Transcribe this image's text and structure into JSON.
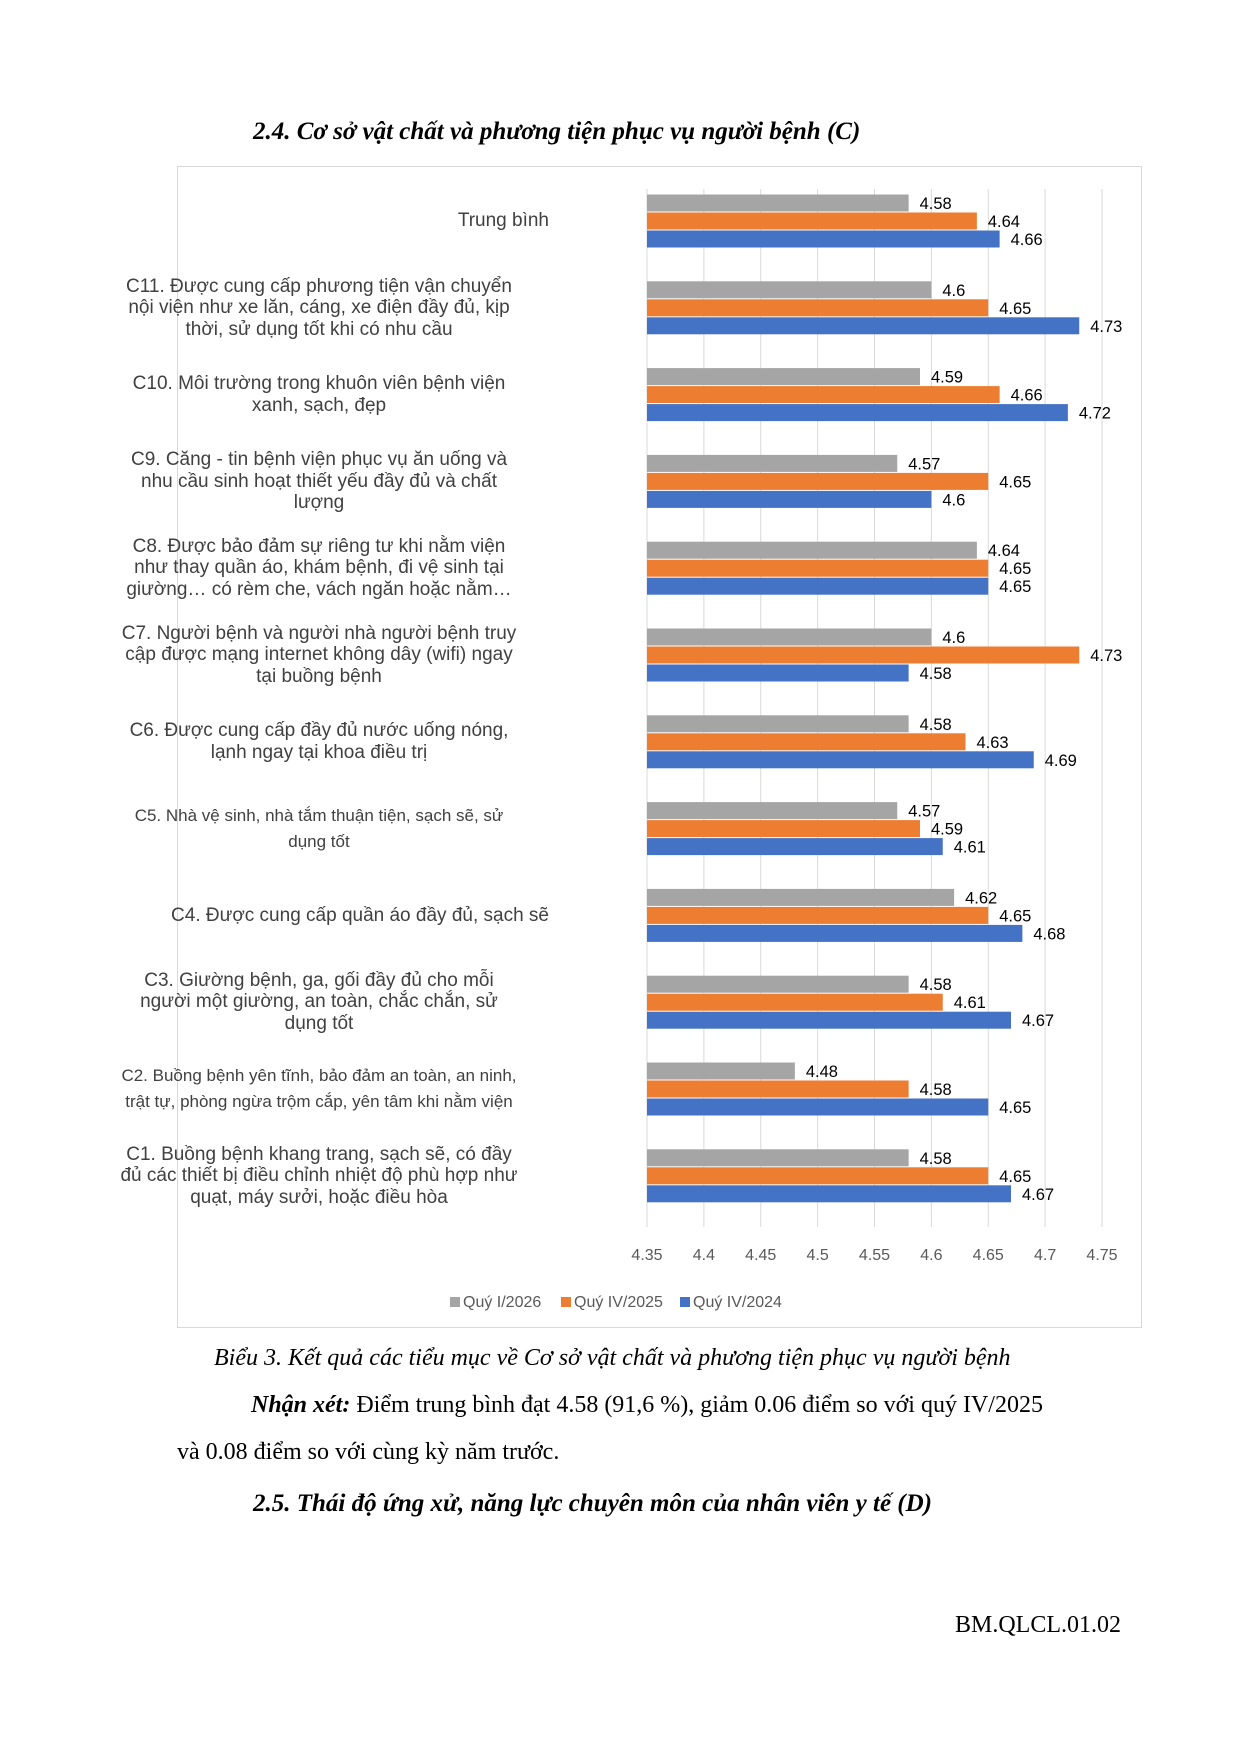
{
  "heading_section": "2.4. Cơ sở vật chất và phương tiện phục vụ người bệnh (C)",
  "caption": "Biểu 3. Kết quả các tiểu mục về Cơ sở vật chất và phương tiện phục vụ người bệnh",
  "remark": {
    "label": "Nhận xét:",
    "line1": "Điểm trung bình đạt 4.58 (91,6 %), giảm 0.06 điểm so với quý IV/2025",
    "line2": "và 0.08 điểm so với cùng kỳ năm trước."
  },
  "heading_next": "2.5. Thái độ ứng xử, năng lực chuyên môn của nhân viên y tế (D)",
  "footer_code": "BM.QLCL.01.02",
  "chart_data": {
    "type": "bar",
    "orientation": "horizontal",
    "title": "",
    "categories": [
      "Trung bình",
      "C11. Được cung cấp phương tiện vận chuyển nội viện như xe lăn, cáng, xe điện đầy đủ, kịp thời, sử dụng tốt khi có nhu cầu",
      "C10. Môi trường trong khuôn viên bệnh viện xanh, sạch, đẹp",
      "C9. Căng - tin bệnh viện phục vụ ăn uống và nhu cầu sinh hoạt thiết yếu đầy đủ và chất lượng",
      "C8. Được bảo đảm sự riêng tư khi nằm viện như thay quần áo, khám bệnh, đi vệ sinh tại giường… có rèm che, vách ngăn hoặc nằm…",
      "C7. Người bệnh và người nhà người bệnh truy cập được mạng internet không dây (wifi) ngay tại buồng bệnh",
      "C6. Được cung cấp đầy đủ nước uống nóng, lạnh ngay tại khoa điều trị",
      "C5. Nhà vệ sinh, nhà tắm thuận tiện, sạch sẽ, sử dụng tốt",
      "C4. Được cung cấp quần áo đầy đủ, sạch sẽ",
      "C3. Giường bệnh, ga, gối đầy đủ cho mỗi người một giường, an toàn, chắc chắn, sử dụng tốt",
      "C2. Buồng bệnh yên tĩnh, bảo đảm an toàn, an ninh, trật tự, phòng ngừa trộm cắp, yên tâm khi nằm viện",
      "C1. Buồng bệnh khang trang, sạch sẽ, có đầy đủ các thiết bị điều chỉnh nhiệt độ phù hợp như quạt, máy sưởi, hoặc điều hòa"
    ],
    "category_lines": [
      [
        "Trung bình"
      ],
      [
        "C11. Được cung cấp phương tiện vận chuyển",
        "nội viện như xe lăn, cáng, xe điện đầy đủ, kịp",
        "thời, sử dụng tốt khi có nhu cầu"
      ],
      [
        "C10. Môi trường trong khuôn viên bệnh viện",
        "xanh, sạch, đẹp"
      ],
      [
        "C9. Căng - tin bệnh viện phục vụ ăn uống và",
        "nhu cầu sinh hoạt thiết yếu đầy đủ và chất",
        "lượng"
      ],
      [
        "C8. Được bảo đảm sự riêng tư khi nằm viện",
        "như thay quần áo, khám bệnh, đi vệ sinh tại",
        "giường… có rèm che, vách ngăn hoặc nằm…"
      ],
      [
        "C7. Người bệnh và người nhà người bệnh truy",
        "cập được mạng internet không dây (wifi) ngay",
        "tại buồng bệnh"
      ],
      [
        "C6. Được cung cấp đầy đủ nước uống nóng,",
        "lạnh ngay tại khoa điều trị"
      ],
      [
        "C5. Nhà vệ sinh, nhà tắm thuận tiện, sạch sẽ, sử",
        "dụng tốt"
      ],
      [
        "C4. Được cung cấp quần áo đầy đủ, sạch sẽ"
      ],
      [
        "C3. Giường bệnh, ga, gối đầy đủ cho mỗi",
        "người một giường, an toàn, chắc chắn, sử",
        "dụng tốt"
      ],
      [
        "C2. Buồng bệnh yên tĩnh, bảo đảm an toàn, an ninh,",
        "trật tự, phòng ngừa trộm cắp, yên tâm khi nằm viện"
      ],
      [
        "C1. Buồng bệnh khang trang, sạch sẽ, có đầy",
        "đủ các thiết bị điều chỉnh nhiệt độ phù hợp như",
        "quạt, máy sưởi, hoặc điều hòa"
      ]
    ],
    "series": [
      {
        "name": "Quý I/2026",
        "color": "#a5a5a5",
        "values": [
          4.58,
          4.6,
          4.59,
          4.57,
          4.64,
          4.6,
          4.58,
          4.57,
          4.62,
          4.58,
          4.48,
          4.58
        ]
      },
      {
        "name": "Quý IV/2025",
        "color": "#ed7d31",
        "values": [
          4.64,
          4.65,
          4.66,
          4.65,
          4.65,
          4.73,
          4.63,
          4.59,
          4.65,
          4.61,
          4.58,
          4.65
        ]
      },
      {
        "name": "Quý IV/2024",
        "color": "#4472c4",
        "values": [
          4.66,
          4.73,
          4.72,
          4.6,
          4.65,
          4.58,
          4.69,
          4.61,
          4.68,
          4.67,
          4.65,
          4.67
        ]
      }
    ],
    "xlim": [
      4.35,
      4.75
    ],
    "xticks": [
      "4.35",
      "4.4",
      "4.45",
      "4.5",
      "4.55",
      "4.6",
      "4.65",
      "4.7",
      "4.75"
    ],
    "grid": true,
    "legend": "bottom"
  }
}
